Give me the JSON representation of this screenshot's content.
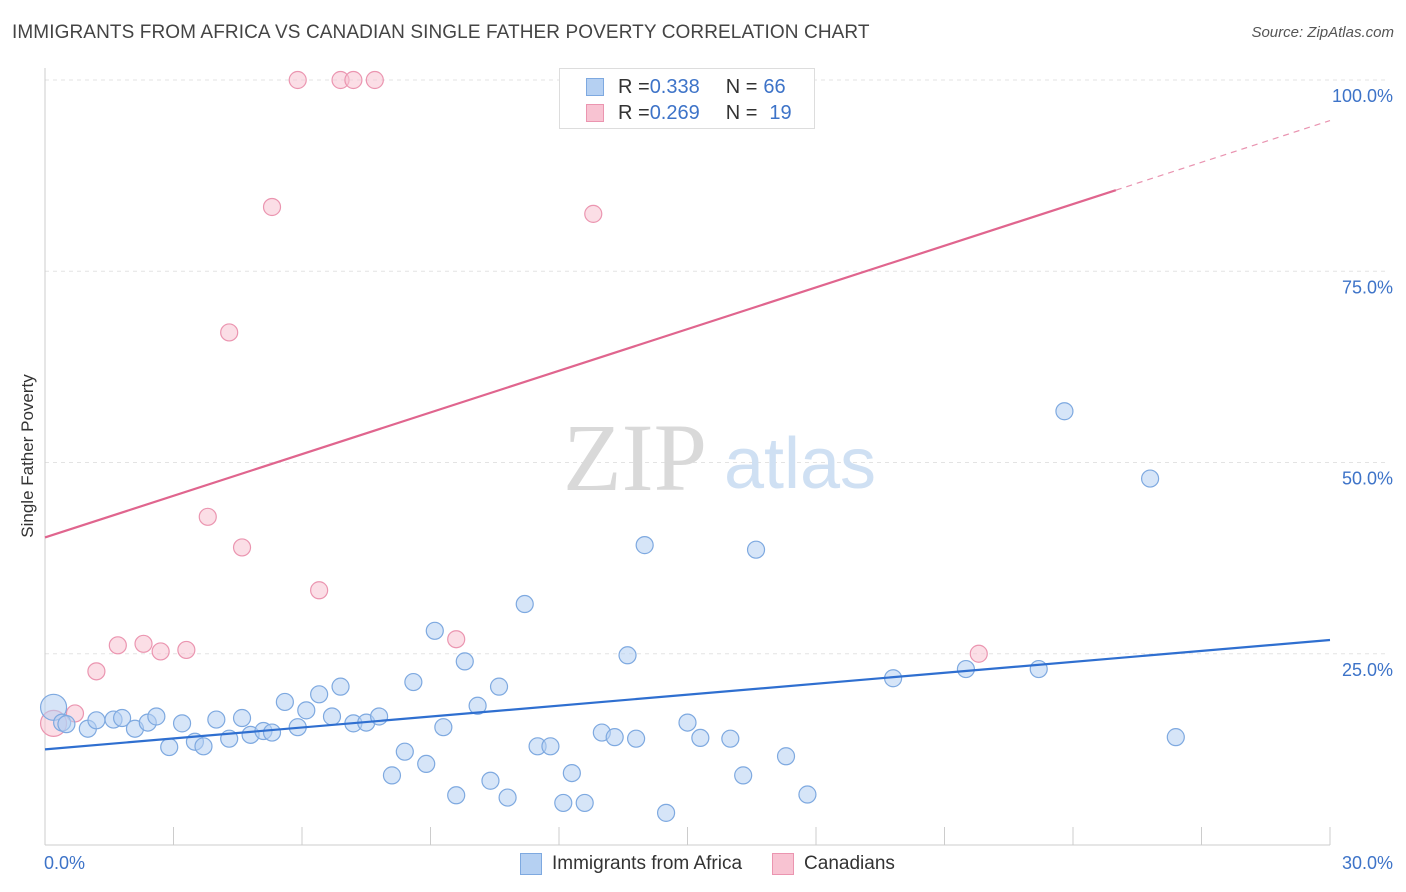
{
  "header": {
    "title": "IMMIGRANTS FROM AFRICA VS CANADIAN SINGLE FATHER POVERTY CORRELATION CHART",
    "source": "Source: ZipAtlas.com"
  },
  "watermark": {
    "zip": "ZIP",
    "atlas": "atlas"
  },
  "legend": {
    "rows": [
      {
        "r_label": "R = ",
        "r_value": "0.338",
        "n_label": "N = ",
        "n_value": "66"
      },
      {
        "r_label": "R = ",
        "r_value": "0.269",
        "n_label": "N = ",
        "n_value": "19"
      }
    ]
  },
  "colors": {
    "blue_fill": "#b5d0f2",
    "blue_stroke": "#7ea9e0",
    "blue_line": "#2f6fd0",
    "pink_fill": "#f8c3d2",
    "pink_stroke": "#eb95b0",
    "pink_line": "#e0658e",
    "axis_text": "#3d73c8",
    "grid": "#e3e3e3"
  },
  "chart_data": {
    "type": "scatter",
    "title": "IMMIGRANTS FROM AFRICA VS CANADIAN SINGLE FATHER POVERTY CORRELATION CHART",
    "xlabel": "",
    "ylabel": "Single Father Poverty",
    "xlim": [
      0,
      30
    ],
    "ylim": [
      0,
      100
    ],
    "x_tick_labels": [
      "0.0%",
      "30.0%"
    ],
    "y_ticks": [
      25,
      50,
      75,
      100
    ],
    "y_tick_labels": [
      "25.0%",
      "50.0%",
      "75.0%",
      "100.0%"
    ],
    "grid": true,
    "legend_position": "bottom-center",
    "series": [
      {
        "name": "Immigrants from Africa",
        "r": 0.338,
        "n": 66,
        "trend": {
          "x": [
            0,
            30
          ],
          "y": [
            12.5,
            26.8
          ]
        },
        "points": [
          [
            0.2,
            18.0
          ],
          [
            0.4,
            16.0
          ],
          [
            0.5,
            15.8
          ],
          [
            1.0,
            15.2
          ],
          [
            1.2,
            16.3
          ],
          [
            1.6,
            16.4
          ],
          [
            1.8,
            16.6
          ],
          [
            2.1,
            15.2
          ],
          [
            2.4,
            16.0
          ],
          [
            2.6,
            16.8
          ],
          [
            2.9,
            12.8
          ],
          [
            3.2,
            15.9
          ],
          [
            3.5,
            13.5
          ],
          [
            3.7,
            12.9
          ],
          [
            4.0,
            16.4
          ],
          [
            4.3,
            13.9
          ],
          [
            4.6,
            16.6
          ],
          [
            4.8,
            14.4
          ],
          [
            5.1,
            14.9
          ],
          [
            5.3,
            14.7
          ],
          [
            5.6,
            18.7
          ],
          [
            5.9,
            15.4
          ],
          [
            6.1,
            17.6
          ],
          [
            6.4,
            19.7
          ],
          [
            6.7,
            16.8
          ],
          [
            6.9,
            20.7
          ],
          [
            7.2,
            15.9
          ],
          [
            7.5,
            16.0
          ],
          [
            7.8,
            16.8
          ],
          [
            8.1,
            9.1
          ],
          [
            8.4,
            12.2
          ],
          [
            8.6,
            21.3
          ],
          [
            8.9,
            10.6
          ],
          [
            9.1,
            28.0
          ],
          [
            9.3,
            15.4
          ],
          [
            9.6,
            6.5
          ],
          [
            9.8,
            24.0
          ],
          [
            10.1,
            18.2
          ],
          [
            10.4,
            8.4
          ],
          [
            10.6,
            20.7
          ],
          [
            10.8,
            6.2
          ],
          [
            11.2,
            31.5
          ],
          [
            11.5,
            12.9
          ],
          [
            11.8,
            12.9
          ],
          [
            12.1,
            5.5
          ],
          [
            12.3,
            9.4
          ],
          [
            12.6,
            5.5
          ],
          [
            13.0,
            14.7
          ],
          [
            13.3,
            14.1
          ],
          [
            13.6,
            24.8
          ],
          [
            13.8,
            13.9
          ],
          [
            14.0,
            39.2
          ],
          [
            14.5,
            4.2
          ],
          [
            15.0,
            16.0
          ],
          [
            15.3,
            14.0
          ],
          [
            16.0,
            13.9
          ],
          [
            16.3,
            9.1
          ],
          [
            16.6,
            38.6
          ],
          [
            17.3,
            11.6
          ],
          [
            17.8,
            6.6
          ],
          [
            19.8,
            21.8
          ],
          [
            21.5,
            23.0
          ],
          [
            23.2,
            23.0
          ],
          [
            23.8,
            56.7
          ],
          [
            25.8,
            47.9
          ],
          [
            26.4,
            14.1
          ]
        ]
      },
      {
        "name": "Canadians",
        "r": 0.269,
        "n": 19,
        "trend": {
          "x": [
            0,
            25
          ],
          "y": [
            40.2,
            85.6
          ]
        },
        "trend_dashed_to": {
          "x": 30,
          "y": 94.7
        },
        "points": [
          [
            0.2,
            15.9
          ],
          [
            0.7,
            17.2
          ],
          [
            1.2,
            22.7
          ],
          [
            1.7,
            26.1
          ],
          [
            2.3,
            26.3
          ],
          [
            2.7,
            25.3
          ],
          [
            3.3,
            25.5
          ],
          [
            3.8,
            42.9
          ],
          [
            4.3,
            67.0
          ],
          [
            4.6,
            38.9
          ],
          [
            5.3,
            83.4
          ],
          [
            5.9,
            100.0
          ],
          [
            6.4,
            33.3
          ],
          [
            6.9,
            100.0
          ],
          [
            7.2,
            100.0
          ],
          [
            7.7,
            100.0
          ],
          [
            9.6,
            26.9
          ],
          [
            12.8,
            82.5
          ],
          [
            21.8,
            25.0
          ]
        ]
      }
    ]
  },
  "bottom_legend": [
    {
      "label": "Immigrants from Africa"
    },
    {
      "label": "Canadians"
    }
  ]
}
